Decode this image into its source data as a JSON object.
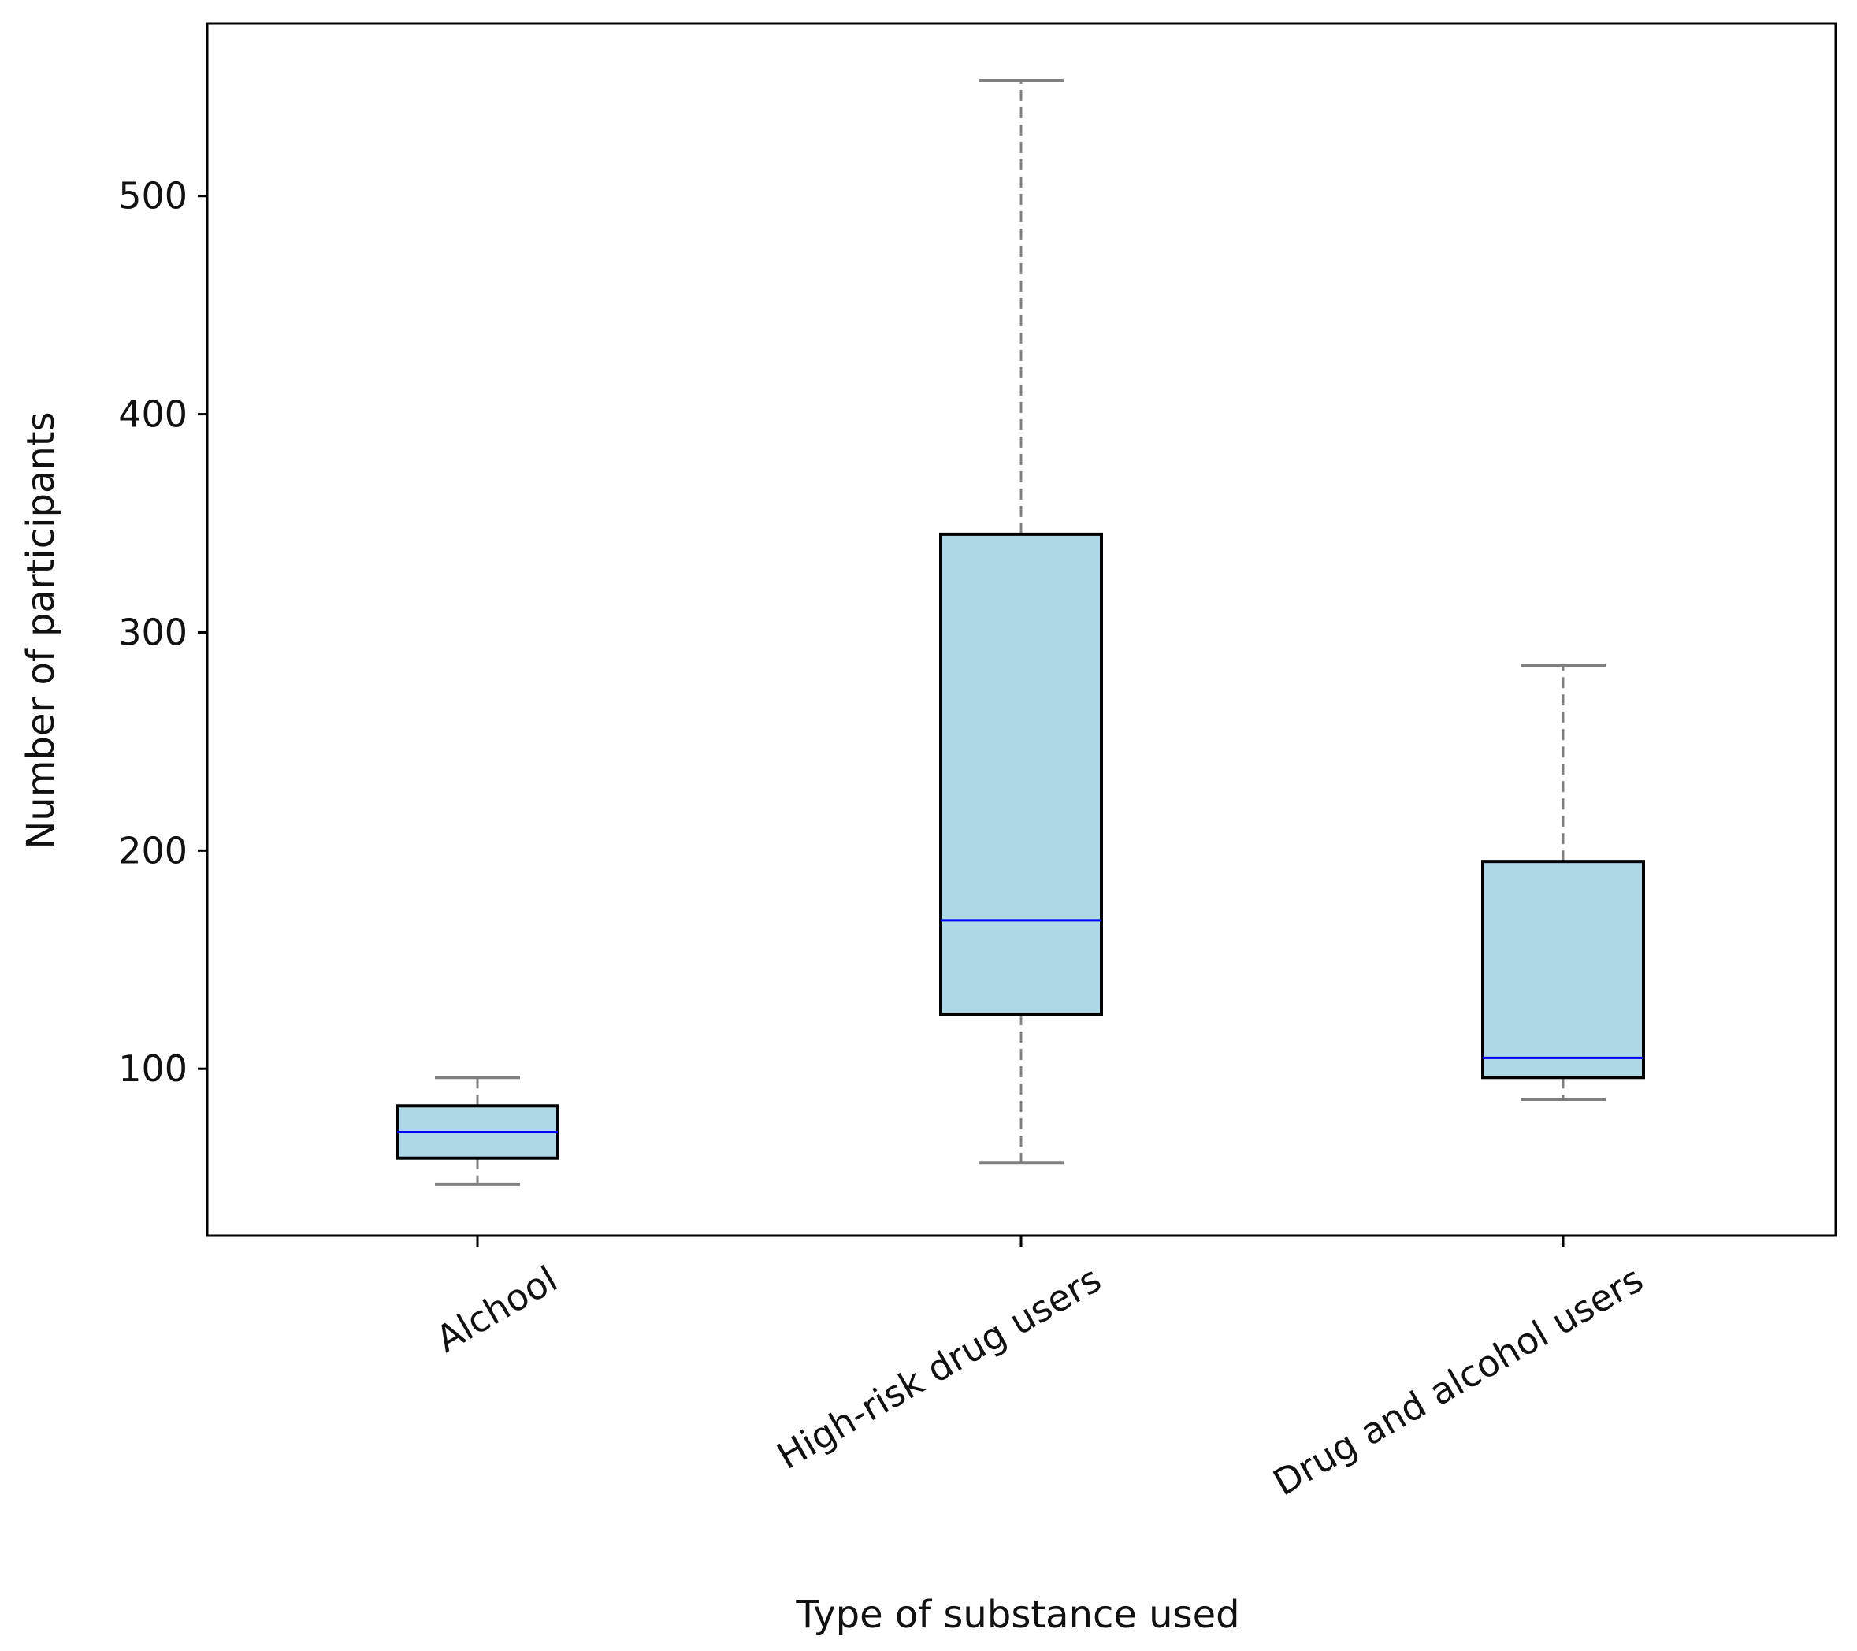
{
  "chart_data": {
    "type": "box",
    "title": "",
    "xlabel": "Type of substance used",
    "ylabel": "Number of participants",
    "ylim": [
      23.5,
      579
    ],
    "yticks": [
      100,
      200,
      300,
      400,
      500
    ],
    "grid": false,
    "categories": [
      "Alchool",
      "High-risk drug users",
      "Drug and alcohol users"
    ],
    "boxes": [
      {
        "whisker_low": 47,
        "q1": 59,
        "median": 71,
        "q3": 83,
        "whisker_high": 96
      },
      {
        "whisker_low": 57,
        "q1": 125,
        "median": 168,
        "q3": 345,
        "whisker_high": 553
      },
      {
        "whisker_low": 86,
        "q1": 96,
        "median": 105,
        "q3": 195,
        "whisker_high": 285
      }
    ],
    "colors": {
      "box_fill": "#add8e6",
      "box_edge": "#000000",
      "median": "#0000ff",
      "whisker": "#808080"
    }
  }
}
